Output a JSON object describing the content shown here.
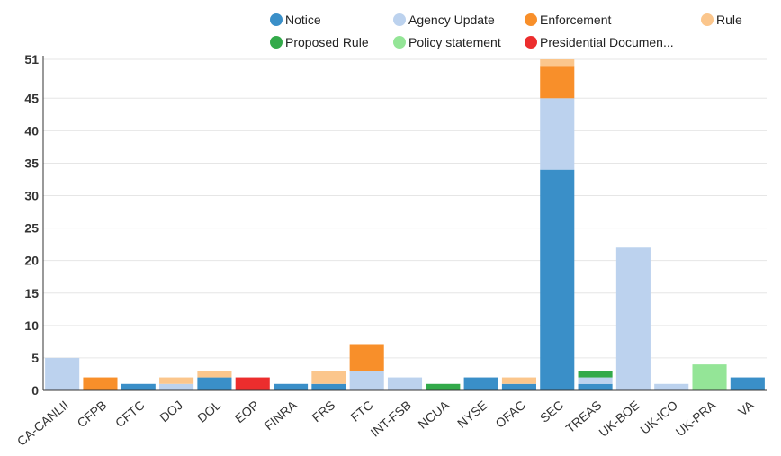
{
  "chart_data": {
    "type": "bar",
    "stacked": true,
    "title": "",
    "xlabel": "",
    "ylabel": "",
    "ylim": [
      0,
      51
    ],
    "yticks": [
      0,
      5,
      10,
      15,
      20,
      25,
      30,
      35,
      40,
      45,
      51
    ],
    "grid": true,
    "legend_position": "top",
    "categories": [
      "CA-CANLII",
      "CFPB",
      "CFTC",
      "DOJ",
      "DOL",
      "EOP",
      "FINRA",
      "FRS",
      "FTC",
      "INT-FSB",
      "NCUA",
      "NYSE",
      "OFAC",
      "SEC",
      "TREAS",
      "UK-BOE",
      "UK-ICO",
      "UK-PRA",
      "VA"
    ],
    "series": [
      {
        "name": "Notice",
        "color": "#3a8fc8",
        "values": [
          0,
          0,
          1,
          0,
          2,
          0,
          1,
          1,
          0,
          0,
          0,
          2,
          1,
          34,
          1,
          0,
          0,
          0,
          2
        ]
      },
      {
        "name": "Agency Update",
        "color": "#bcd2ee",
        "values": [
          5,
          0,
          0,
          1,
          0,
          0,
          0,
          0,
          3,
          2,
          0,
          0,
          0,
          11,
          1,
          22,
          1,
          0,
          0
        ]
      },
      {
        "name": "Enforcement",
        "color": "#f88f2a",
        "values": [
          0,
          2,
          0,
          0,
          0,
          0,
          0,
          0,
          4,
          0,
          0,
          0,
          0,
          5,
          0,
          0,
          0,
          0,
          0
        ]
      },
      {
        "name": "Rule",
        "color": "#fbc68c",
        "values": [
          0,
          0,
          0,
          1,
          1,
          0,
          0,
          2,
          0,
          0,
          0,
          0,
          1,
          1,
          0,
          0,
          0,
          0,
          0
        ]
      },
      {
        "name": "Proposed Rule",
        "color": "#33aa4a",
        "values": [
          0,
          0,
          0,
          0,
          0,
          0,
          0,
          0,
          0,
          0,
          1,
          0,
          0,
          0,
          1,
          0,
          0,
          0,
          0
        ]
      },
      {
        "name": "Policy statement",
        "color": "#94e597",
        "values": [
          0,
          0,
          0,
          0,
          0,
          0,
          0,
          0,
          0,
          0,
          0,
          0,
          0,
          0,
          0,
          0,
          0,
          4,
          0
        ]
      },
      {
        "name": "Presidential Documen...",
        "color": "#ec2d2d",
        "values": [
          0,
          0,
          0,
          0,
          0,
          2,
          0,
          0,
          0,
          0,
          0,
          0,
          0,
          0,
          0,
          0,
          0,
          0,
          0
        ]
      }
    ]
  }
}
